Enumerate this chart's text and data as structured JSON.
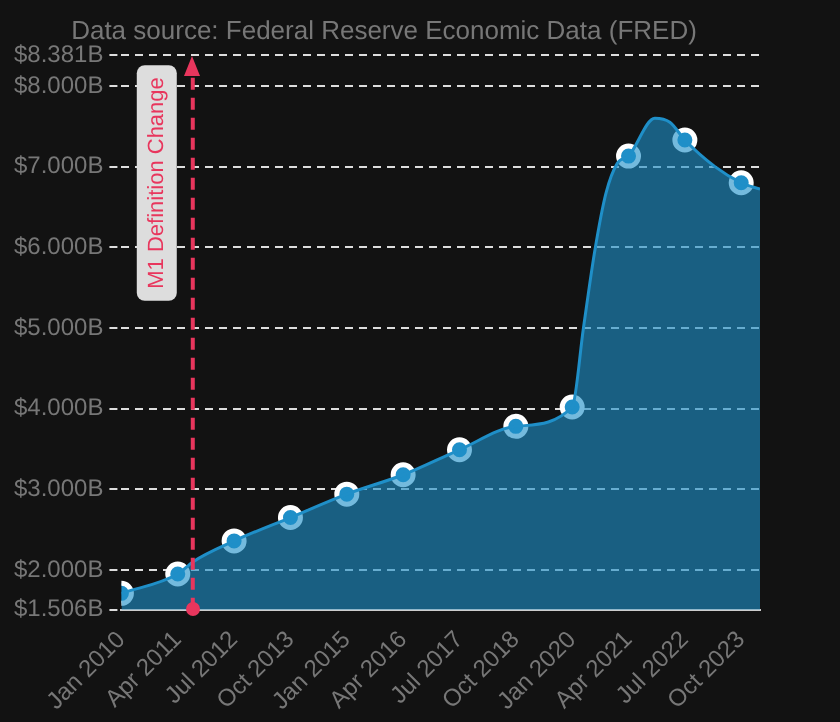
{
  "chart_data": {
    "type": "area",
    "subtitle": "Data source: Federal Reserve Economic Data (FRED)",
    "series": [
      {
        "type": "area",
        "color": "#1f8fc8",
        "x": [
          "2010-01",
          "2011-04",
          "2011-08",
          "2012-07",
          "2013-10",
          "2015-01",
          "2016-04",
          "2017-07",
          "2018-10",
          "2020-01",
          "2020-04",
          "2020-07",
          "2020-10",
          "2021-01",
          "2021-04",
          "2021-11",
          "2022-03",
          "2022-07",
          "2023-03",
          "2023-10",
          "2024-03"
        ],
        "values": [
          1.71,
          1.95,
          2.1,
          2.36,
          2.65,
          2.94,
          3.18,
          3.49,
          3.78,
          4.02,
          5.0,
          5.95,
          6.67,
          7.04,
          7.13,
          7.6,
          7.55,
          7.33,
          7.0,
          6.8,
          6.72
        ]
      },
      {
        "type": "scatter",
        "color": "#1f8fc8",
        "marker": "circle",
        "x": [
          "2010-01",
          "2011-04",
          "2012-07",
          "2013-10",
          "2015-01",
          "2016-04",
          "2017-07",
          "2018-10",
          "2020-01",
          "2021-04",
          "2022-07",
          "2023-10"
        ],
        "values": [
          1.71,
          1.95,
          2.36,
          2.65,
          2.94,
          3.18,
          3.49,
          3.78,
          4.02,
          7.13,
          7.33,
          6.8
        ]
      }
    ],
    "xlim": [
      "2010-01",
      "2024-03"
    ],
    "xticks": [
      {
        "value": "2010-01",
        "label": "Jan 2010"
      },
      {
        "value": "2011-04",
        "label": "Apr 2011"
      },
      {
        "value": "2012-07",
        "label": "Jul 2012"
      },
      {
        "value": "2013-10",
        "label": "Oct 2013"
      },
      {
        "value": "2015-01",
        "label": "Jan 2015"
      },
      {
        "value": "2016-04",
        "label": "Apr 2016"
      },
      {
        "value": "2017-07",
        "label": "Jul 2017"
      },
      {
        "value": "2018-10",
        "label": "Oct 2018"
      },
      {
        "value": "2020-01",
        "label": "Jan 2020"
      },
      {
        "value": "2021-04",
        "label": "Apr 2021"
      },
      {
        "value": "2022-07",
        "label": "Jul 2022"
      },
      {
        "value": "2023-10",
        "label": "Oct 2023"
      }
    ],
    "ylim": [
      1.506,
      8.381
    ],
    "yticks": [
      {
        "value": 1.506,
        "label": "$1.506B"
      },
      {
        "value": 2,
        "label": "$2.000B"
      },
      {
        "value": 3,
        "label": "$3.000B"
      },
      {
        "value": 4,
        "label": "$4.000B"
      },
      {
        "value": 5,
        "label": "$5.000B"
      },
      {
        "value": 6,
        "label": "$6.000B"
      },
      {
        "value": 7,
        "label": "$7.000B"
      },
      {
        "value": 8,
        "label": "$8.000B"
      },
      {
        "value": 8.381,
        "label": "$8.381B"
      }
    ],
    "grid": "y",
    "legend": false,
    "ref_lines": [
      {
        "axis": "x",
        "value": "2011-08",
        "label": "M1 Definition Change",
        "color": "#e8365d",
        "line_style": "dashed"
      }
    ]
  }
}
